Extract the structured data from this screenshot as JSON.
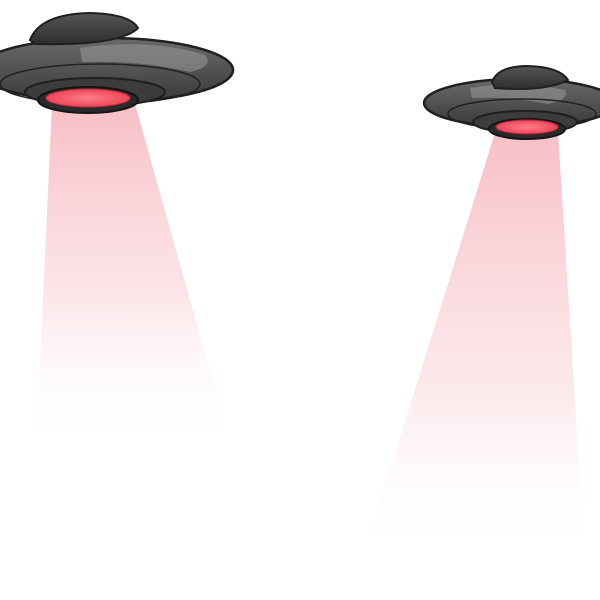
{
  "scene": {
    "background": "#ffffff",
    "subjects": [
      {
        "id": "ufo-left",
        "icon": "ufo-icon",
        "hull_color": "#4a4a4c",
        "hull_highlight": "#8e8e90",
        "light_color": "#f24d5e",
        "beam_color": "#f7b8c0"
      },
      {
        "id": "ufo-right",
        "icon": "ufo-icon",
        "hull_color": "#4a4a4c",
        "hull_highlight": "#8e8e90",
        "light_color": "#f24d5e",
        "beam_color": "#f7b8c0"
      }
    ]
  }
}
